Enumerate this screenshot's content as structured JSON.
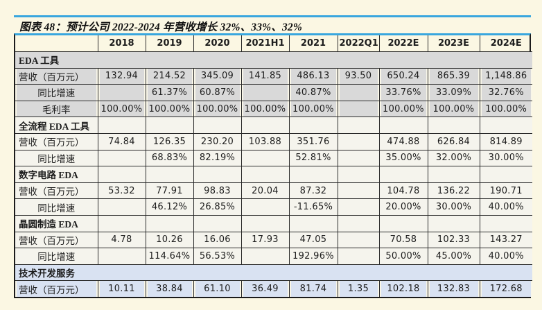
{
  "title": {
    "label": "图表 48：预计公司 2022-2024 年营收增长 32%、33%、32%"
  },
  "colors": {
    "page_background": "#FBF7E3",
    "accent_blue_rule": "#38A6DE",
    "section_gray": "#D9D9D9",
    "section_light": "#F5F4ED",
    "section_blue": "#D9E2F2",
    "border_dark": "#1b1b1b"
  },
  "table": {
    "columns": [
      "",
      "2018",
      "2019",
      "2020",
      "2021H1",
      "2021",
      "2022Q1",
      "2022E",
      "2023E",
      "2024E"
    ],
    "sections": [
      {
        "header": "EDA 工具",
        "theme": "gray",
        "merged": true,
        "rows": [
          {
            "label": "营收（百万元）",
            "values": [
              "132.94",
              "214.52",
              "345.09",
              "141.85",
              "486.13",
              "93.50",
              "650.24",
              "865.39",
              "1,148.86"
            ]
          },
          {
            "label": "同比增速",
            "values": [
              "",
              "61.37%",
              "60.87%",
              "",
              "40.87%",
              "",
              "33.76%",
              "33.09%",
              "32.76%"
            ]
          },
          {
            "label": "毛利率",
            "values": [
              "100.00%",
              "100.00%",
              "100.00%",
              "100.00%",
              "100.00%",
              "",
              "100.00%",
              "100.00%",
              "100.00%"
            ]
          }
        ]
      },
      {
        "header": "全流程 EDA 工具",
        "theme": "light",
        "merged": false,
        "rows": [
          {
            "label": "营收（百万元）",
            "values": [
              "74.84",
              "126.35",
              "230.20",
              "103.88",
              "351.76",
              "",
              "474.88",
              "626.84",
              "814.89"
            ]
          },
          {
            "label": "同比增速",
            "values": [
              "",
              "68.83%",
              "82.19%",
              "",
              "52.81%",
              "",
              "35.00%",
              "32.00%",
              "30.00%"
            ]
          }
        ]
      },
      {
        "header": "数字电路 EDA",
        "theme": "light",
        "merged": false,
        "rows": [
          {
            "label": "营收（百万元）",
            "values": [
              "53.32",
              "77.91",
              "98.83",
              "20.04",
              "87.32",
              "",
              "104.78",
              "136.22",
              "190.71"
            ]
          },
          {
            "label": "同比增速",
            "values": [
              "",
              "46.12%",
              "26.85%",
              "",
              "-11.65%",
              "",
              "20.00%",
              "30.00%",
              "40.00%"
            ]
          }
        ]
      },
      {
        "header": "晶圆制造 EDA",
        "theme": "light",
        "merged": false,
        "rows": [
          {
            "label": "营收（百万元）",
            "values": [
              "4.78",
              "10.26",
              "16.06",
              "17.93",
              "47.05",
              "",
              "70.58",
              "102.33",
              "143.27"
            ]
          },
          {
            "label": "同比增速",
            "values": [
              "",
              "114.64%",
              "56.53%",
              "",
              "192.96%",
              "",
              "50.00%",
              "45.00%",
              "40.00%"
            ]
          }
        ]
      },
      {
        "header": "技术开发服务",
        "theme": "blue",
        "merged": true,
        "rows": [
          {
            "label": "营收（百万元）",
            "values": [
              "10.11",
              "38.84",
              "61.10",
              "36.49",
              "81.74",
              "1.35",
              "102.18",
              "132.83",
              "172.68"
            ]
          }
        ]
      }
    ]
  }
}
